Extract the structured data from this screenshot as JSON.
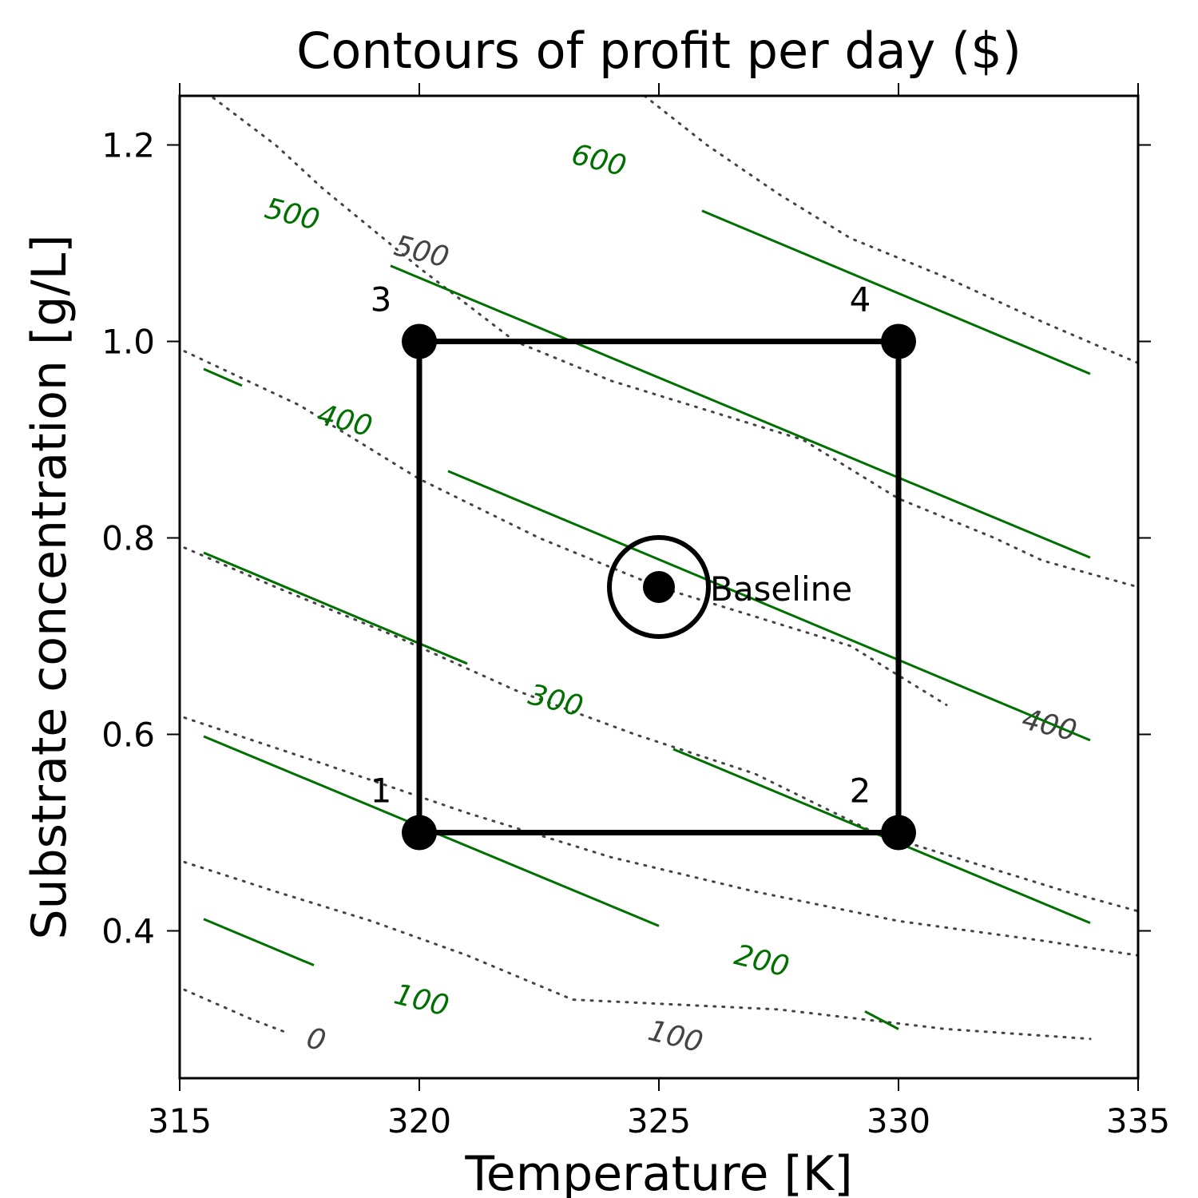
{
  "chart_data": {
    "type": "contour",
    "title": "Contours of profit per day ($)",
    "xlabel": "Temperature [K]",
    "ylabel": "Substrate concentration [g/L]",
    "xlim": [
      315,
      335
    ],
    "ylim": [
      0.25,
      1.25
    ],
    "xticks": [
      315,
      320,
      325,
      330,
      335
    ],
    "yticks": [
      0.4,
      0.6,
      0.8,
      1.0,
      1.2
    ],
    "ytick_labels": [
      "0.4",
      "0.6",
      "0.8",
      "1.0",
      "1.2"
    ],
    "colors": {
      "linear_model": "#007000",
      "true_surface": "#444444",
      "design": "#000000"
    },
    "design_points": [
      {
        "label": "1",
        "T": 320,
        "S": 0.5
      },
      {
        "label": "2",
        "T": 330,
        "S": 0.5
      },
      {
        "label": "3",
        "T": 320,
        "S": 1.0
      },
      {
        "label": "4",
        "T": 330,
        "S": 1.0
      }
    ],
    "baseline": {
      "label": "Baseline",
      "T": 325,
      "S": 0.75
    },
    "linear_model_contours": [
      {
        "level": 100,
        "label": "100",
        "segments": [
          [
            [
              315.5,
              0.412
            ],
            [
              317.8,
              0.365
            ]
          ]
        ],
        "label_at": [
          320.0,
          0.32
        ]
      },
      {
        "level": 200,
        "label": "200",
        "segments": [
          [
            [
              315.5,
              0.598
            ],
            [
              325.0,
              0.405
            ]
          ],
          [
            [
              329.3,
              0.318
            ],
            [
              330.0,
              0.3
            ]
          ]
        ],
        "label_at": [
          327.1,
          0.36
        ]
      },
      {
        "level": 300,
        "label": "300",
        "segments": [
          [
            [
              315.5,
              0.785
            ],
            [
              321.0,
              0.672
            ]
          ],
          [
            [
              325.3,
              0.585
            ],
            [
              334.0,
              0.408
            ]
          ]
        ],
        "label_at": [
          322.8,
          0.625
        ]
      },
      {
        "level": 400,
        "label": "400",
        "segments": [
          [
            [
              315.5,
              0.972
            ],
            [
              316.3,
              0.955
            ]
          ],
          [
            [
              320.6,
              0.868
            ],
            [
              334.0,
              0.594
            ]
          ]
        ],
        "label_at": [
          318.4,
          0.91
        ]
      },
      {
        "level": 500,
        "label": "500",
        "segments": [
          [
            [
              319.4,
              1.077
            ],
            [
              334.0,
              0.78
            ]
          ]
        ],
        "label_at": [
          317.3,
          1.12
        ]
      },
      {
        "level": 600,
        "label": "600",
        "segments": [
          [
            [
              325.9,
              1.133
            ],
            [
              334.0,
              0.967
            ]
          ]
        ],
        "label_at": [
          323.7,
          1.175
        ]
      }
    ],
    "true_surface_contours": [
      {
        "level": 0,
        "label": "0",
        "points": [
          [
            315.1,
            0.34
          ],
          [
            316.5,
            0.31
          ],
          [
            317.2,
            0.297
          ]
        ],
        "label_at": [
          317.8,
          0.28
        ]
      },
      {
        "level": 100,
        "label": "100",
        "points": [
          [
            315.1,
            0.47
          ],
          [
            317.0,
            0.44
          ],
          [
            319.0,
            0.41
          ],
          [
            321.0,
            0.375
          ],
          [
            323.2,
            0.33
          ],
          [
            327.5,
            0.32
          ],
          [
            331.0,
            0.3
          ],
          [
            334.0,
            0.29
          ]
        ],
        "label_at": [
          325.3,
          0.283
        ]
      },
      {
        "level": 200,
        "label": "200",
        "points": [
          [
            315.1,
            0.617
          ],
          [
            318.0,
            0.57
          ],
          [
            321.0,
            0.52
          ],
          [
            324.0,
            0.475
          ],
          [
            327.0,
            0.44
          ],
          [
            330.0,
            0.41
          ],
          [
            333.0,
            0.39
          ],
          [
            335.0,
            0.375
          ]
        ],
        "label_at": [
          null,
          null
        ]
      },
      {
        "level": 300,
        "label": "300",
        "points": [
          [
            315.1,
            0.79
          ],
          [
            317.0,
            0.75
          ],
          [
            319.5,
            0.7
          ],
          [
            322.0,
            0.645
          ],
          [
            324.5,
            0.6
          ],
          [
            327.0,
            0.56
          ],
          [
            329.5,
            0.5
          ],
          [
            331.5,
            0.47
          ],
          [
            333.5,
            0.44
          ],
          [
            335.0,
            0.42
          ]
        ],
        "label_at": [
          null,
          null
        ]
      },
      {
        "level": 400,
        "label": "400",
        "points": [
          [
            315.1,
            0.99
          ],
          [
            317.5,
            0.935
          ],
          [
            320.0,
            0.86
          ],
          [
            322.5,
            0.8
          ],
          [
            325.0,
            0.75
          ],
          [
            327.0,
            0.72
          ],
          [
            329.0,
            0.69
          ],
          [
            331.0,
            0.63
          ]
        ],
        "label_at": [
          333.1,
          0.6
        ]
      },
      {
        "level": 500,
        "label": "500",
        "points": [
          [
            315.7,
            1.248
          ],
          [
            317.0,
            1.2
          ],
          [
            318.0,
            1.155
          ],
          [
            320.0,
            1.075
          ],
          [
            322.0,
            1.0
          ],
          [
            324.0,
            0.96
          ],
          [
            326.0,
            0.93
          ],
          [
            328.0,
            0.9
          ],
          [
            330.0,
            0.84
          ],
          [
            332.0,
            0.8
          ],
          [
            333.0,
            0.777
          ],
          [
            335.0,
            0.75
          ]
        ],
        "label_at": [
          320.0,
          1.082
        ]
      },
      {
        "level": 600,
        "label": "600",
        "points": [
          [
            324.7,
            1.25
          ],
          [
            326.0,
            1.2
          ],
          [
            327.5,
            1.15
          ],
          [
            329.0,
            1.105
          ],
          [
            331.0,
            1.065
          ],
          [
            333.0,
            1.02
          ],
          [
            335.0,
            0.978
          ]
        ],
        "label_at": [
          null,
          null
        ]
      }
    ]
  }
}
